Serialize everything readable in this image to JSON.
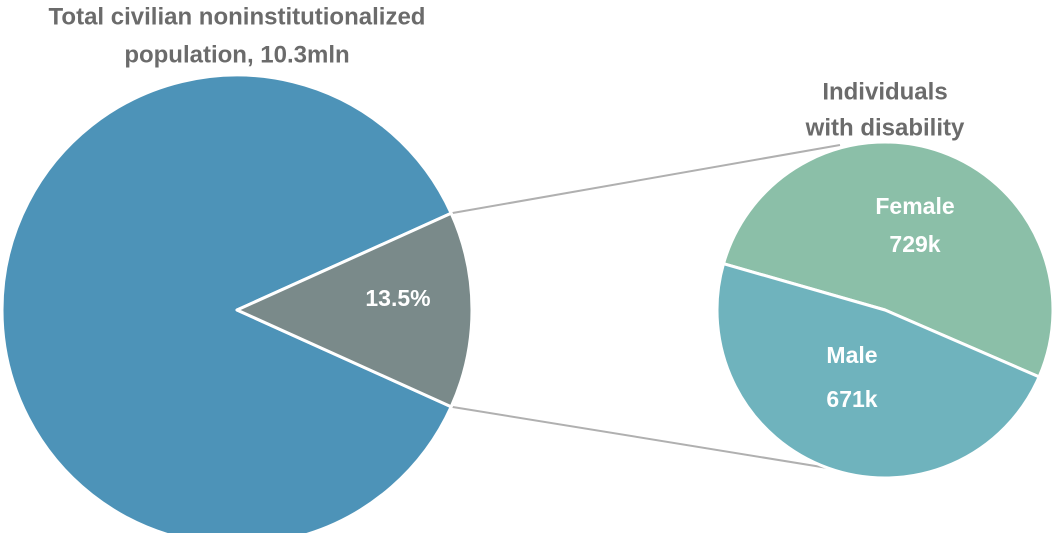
{
  "chart_data": [
    {
      "type": "pie",
      "title": [
        "Total civilian noninstitutionalized",
        "population, 10.3mln"
      ],
      "values": [
        86.5,
        13.5
      ],
      "value_labels": [
        null,
        "13.5%"
      ],
      "colors": [
        "#4d93b8",
        "#7a8a8a"
      ]
    },
    {
      "type": "pie",
      "title": [
        "Individuals",
        "with disability"
      ],
      "categories": [
        "Female",
        "Male"
      ],
      "values": [
        729,
        671
      ],
      "value_labels": [
        "729k",
        "671k"
      ],
      "colors": [
        "#8bbfa8",
        "#6fb3bd"
      ]
    }
  ]
}
